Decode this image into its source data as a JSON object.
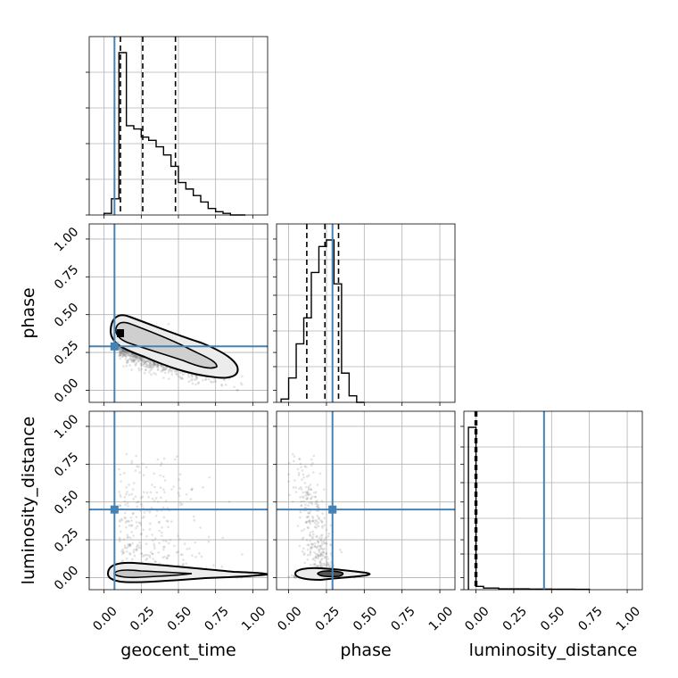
{
  "chart_data": {
    "type": "corner",
    "parameters": [
      "geocent_time",
      "phase",
      "luminosity_distance"
    ],
    "axis_labels": {
      "geocent_time": "geocent_time",
      "phase": "phase",
      "luminosity_distance": "luminosity_distance"
    },
    "ticks": [
      0.0,
      0.25,
      0.5,
      0.75,
      1.0
    ],
    "tick_labels": [
      "0.00",
      "0.25",
      "0.50",
      "0.75",
      "1.00"
    ],
    "limits": {
      "geocent_time": [
        -0.1,
        1.1
      ],
      "phase": [
        -0.08,
        1.1
      ],
      "luminosity_distance": [
        -0.08,
        1.1
      ]
    },
    "truths": {
      "geocent_time": 0.07,
      "phase": 0.29,
      "luminosity_distance": 0.45
    },
    "quantiles": {
      "geocent_time": [
        0.11,
        0.26,
        0.48
      ],
      "phase": [
        0.12,
        0.24,
        0.33
      ],
      "luminosity_distance": [
        -0.005,
        -0.005,
        0.005
      ]
    },
    "hist1d": {
      "geocent_time": {
        "edges": [
          0.0,
          0.05,
          0.1,
          0.15,
          0.2,
          0.25,
          0.3,
          0.35,
          0.4,
          0.45,
          0.5,
          0.55,
          0.6,
          0.65,
          0.7,
          0.75,
          0.8,
          0.85,
          0.9,
          0.95
        ],
        "counts": [
          0.01,
          0.1,
          1.0,
          0.55,
          0.53,
          0.48,
          0.46,
          0.42,
          0.37,
          0.3,
          0.2,
          0.16,
          0.12,
          0.08,
          0.04,
          0.02,
          0.01,
          0.0,
          0.0
        ]
      },
      "phase": {
        "edges": [
          -0.05,
          0.0,
          0.05,
          0.1,
          0.15,
          0.2,
          0.25,
          0.3,
          0.35,
          0.4,
          0.45,
          0.5
        ],
        "counts": [
          0.02,
          0.15,
          0.36,
          0.52,
          0.8,
          0.96,
          1.0,
          0.73,
          0.18,
          0.04,
          0.0
        ]
      },
      "luminosity_distance": {
        "edges": [
          -0.05,
          0.0,
          0.05,
          0.1,
          0.15,
          0.2,
          0.25,
          0.3,
          0.35,
          0.4,
          0.45,
          0.5,
          0.55,
          0.6,
          0.65,
          0.7,
          0.75
        ],
        "counts": [
          1.0,
          0.02,
          0.01,
          0.01,
          0.005,
          0.005,
          0.005,
          0.005,
          0.004,
          0.004,
          0.004,
          0.003,
          0.003,
          0.003,
          0.002,
          0.002
        ]
      }
    },
    "grid": true,
    "colors": {
      "truth": "#4682b4",
      "hist": "#000000",
      "points": "#808080",
      "contour_fill": "#d9d9d9",
      "grid": "#b0b0b0"
    }
  }
}
